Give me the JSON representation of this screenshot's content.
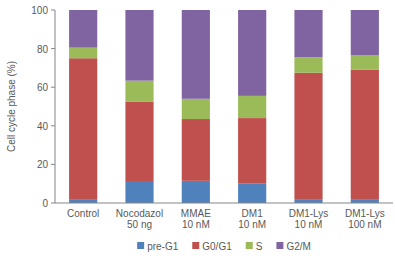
{
  "chart_data": {
    "type": "bar",
    "stacked": true,
    "grid": false,
    "legend": "bottom",
    "y_label": "Cell cycle phase (%)",
    "categories": [
      "Control",
      "Nocodazol\n50 ng",
      "MMAE\n10 nM",
      "DM1\n10 nM",
      "DM1-Lys\n10 nM",
      "DM1-Lys\n100 nM"
    ],
    "series": [
      {
        "name": "pre-G1",
        "color": "#4f81bd",
        "values": [
          2,
          11.4,
          11.5,
          10,
          2,
          2
        ]
      },
      {
        "name": "G0/G1",
        "color": "#c0504d",
        "values": [
          73,
          41,
          32,
          34,
          65.5,
          67
        ]
      },
      {
        "name": "S",
        "color": "#9bbb59",
        "values": [
          5.5,
          11,
          10.5,
          11.5,
          8,
          7.5
        ]
      },
      {
        "name": "G2/M",
        "color": "#8064a2",
        "values": [
          19.5,
          36.6,
          46,
          44.5,
          24.5,
          23.5
        ]
      }
    ],
    "ylim": [
      0,
      100
    ],
    "yticks": [
      0,
      20,
      40,
      60,
      80,
      100
    ]
  }
}
